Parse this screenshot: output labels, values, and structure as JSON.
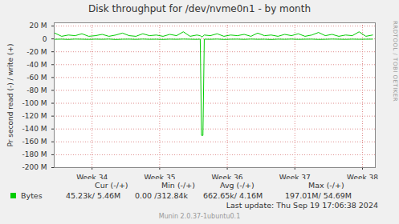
{
  "chart_data": {
    "type": "line",
    "title": "Disk throughput for /dev/nvme0n1 - by month",
    "y_label": "Pr second read (-) / write (+)",
    "x": [
      33.45,
      33.55,
      33.65,
      33.75,
      33.85,
      33.95,
      34.05,
      34.15,
      34.25,
      34.35,
      34.45,
      34.55,
      34.65,
      34.75,
      34.85,
      34.95,
      35.05,
      35.15,
      35.25,
      35.35,
      35.45,
      35.55,
      35.6,
      35.62,
      35.64,
      35.66,
      35.75,
      35.85,
      35.95,
      36.05,
      36.15,
      36.25,
      36.35,
      36.45,
      36.55,
      36.65,
      36.75,
      36.85,
      36.95,
      37.05,
      37.15,
      37.25,
      37.35,
      37.45,
      37.55,
      37.65,
      37.75,
      37.85,
      37.95,
      38.05,
      38.15
    ],
    "xlim": [
      33.44,
      38.19
    ],
    "xticks": [
      {
        "value": 34,
        "label": "Week 34"
      },
      {
        "value": 35,
        "label": "Week 35"
      },
      {
        "value": 36,
        "label": "Week 36"
      },
      {
        "value": 37,
        "label": "Week 37"
      },
      {
        "value": 38,
        "label": "Week 38"
      }
    ],
    "ylim": [
      -200,
      25
    ],
    "yticks": [
      {
        "value": 20,
        "label": "20 M"
      },
      0,
      {
        "value": -20,
        "label": "-20 M"
      },
      {
        "value": -40,
        "label": "-40 M"
      },
      {
        "value": -60,
        "label": "-60 M"
      },
      {
        "value": -80,
        "label": "-80 M"
      },
      {
        "value": -100,
        "label": "-100 M"
      },
      {
        "value": -120,
        "label": "-120 M"
      },
      {
        "value": -140,
        "label": "-140 M"
      },
      {
        "value": -160,
        "label": "-160 M"
      },
      {
        "value": -180,
        "label": "-180 M"
      },
      {
        "value": -200,
        "label": "-200 M"
      }
    ],
    "grid": true,
    "series": [
      {
        "name": "Bytes",
        "color": "#00cc00",
        "values": [
          9,
          4,
          6,
          5,
          8,
          4,
          5,
          7,
          4,
          6,
          9,
          5,
          4,
          8,
          5,
          6,
          4,
          7,
          5,
          11,
          4,
          6,
          5,
          3,
          4,
          6,
          5,
          8,
          4,
          6,
          5,
          7,
          4,
          9,
          5,
          6,
          4,
          7,
          5,
          8,
          4,
          6,
          10,
          5,
          7,
          4,
          6,
          5,
          11,
          4,
          6
        ],
        "read_values": [
          -0.6,
          -0.4,
          -0.8,
          -0.3,
          -0.5,
          -0.7,
          -0.4,
          -0.6,
          -0.3,
          -0.9,
          -0.5,
          -0.4,
          -0.7,
          -0.3,
          -0.6,
          -0.5,
          -0.8,
          -0.4,
          -0.6,
          -0.3,
          -0.5,
          -0.7,
          -0.4,
          -150,
          -150,
          -0.5,
          -0.6,
          -0.3,
          -0.8,
          -0.5,
          -0.4,
          -0.7,
          -0.3,
          -0.6,
          -0.5,
          -0.9,
          -0.4,
          -0.6,
          -0.3,
          -0.7,
          -0.5,
          -0.4,
          -0.8,
          -0.6,
          -0.3,
          -0.5,
          -0.7,
          -0.4,
          -0.6,
          -0.5,
          -0.4
        ],
        "stats": [
          "45.23k/ 5.46M",
          "0.00 /312.84k",
          "662.65k/ 4.16M",
          "197.01M/ 54.69M"
        ]
      }
    ],
    "stats_columns": [
      "Cur (-/+)",
      "Min (-/+)",
      "Avg (-/+)",
      "Max (-/+)"
    ],
    "last_update": "Last update: Thu Sep 19 17:06:38 2024",
    "footer": "Munin 2.0.37-1ubuntu0.1",
    "side_text": "RRDTOOL / TOBI OETIKER"
  }
}
